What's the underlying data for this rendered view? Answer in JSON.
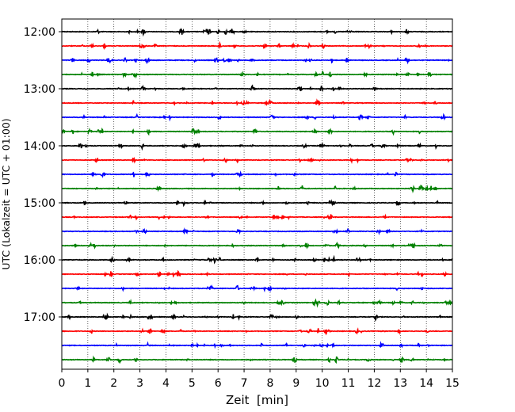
{
  "chart_data": {
    "type": "line",
    "title": "",
    "xlabel": "Zeit  [min]",
    "ylabel": "UTC (Lokalzeit = UTC + 01:00)",
    "xlim": [
      0,
      15
    ],
    "x_ticks": [
      "0",
      "1",
      "2",
      "3",
      "4",
      "5",
      "6",
      "7",
      "8",
      "9",
      "10",
      "11",
      "12",
      "13",
      "14",
      "15"
    ],
    "y_ticks": [
      "12:00",
      "13:00",
      "14:00",
      "15:00",
      "16:00",
      "17:00"
    ],
    "grid": "vertical dotted lines at each minute",
    "row_interval_minutes": 15,
    "row_colors": [
      "#000000",
      "#ff0000",
      "#0000ff",
      "#008000"
    ],
    "traces": [
      {
        "start": "12:00",
        "color": "black"
      },
      {
        "start": "12:15",
        "color": "red"
      },
      {
        "start": "12:30",
        "color": "blue"
      },
      {
        "start": "12:45",
        "color": "green"
      },
      {
        "start": "13:00",
        "color": "black"
      },
      {
        "start": "13:15",
        "color": "red"
      },
      {
        "start": "13:30",
        "color": "blue"
      },
      {
        "start": "13:45",
        "color": "green"
      },
      {
        "start": "14:00",
        "color": "black"
      },
      {
        "start": "14:15",
        "color": "red"
      },
      {
        "start": "14:30",
        "color": "blue"
      },
      {
        "start": "14:45",
        "color": "green"
      },
      {
        "start": "15:00",
        "color": "black"
      },
      {
        "start": "15:15",
        "color": "red"
      },
      {
        "start": "15:30",
        "color": "blue"
      },
      {
        "start": "15:45",
        "color": "green"
      },
      {
        "start": "16:00",
        "color": "black"
      },
      {
        "start": "16:15",
        "color": "red"
      },
      {
        "start": "16:30",
        "color": "blue"
      },
      {
        "start": "16:45",
        "color": "green"
      },
      {
        "start": "17:00",
        "color": "black"
      },
      {
        "start": "17:15",
        "color": "red"
      },
      {
        "start": "17:30",
        "color": "blue"
      },
      {
        "start": "17:45",
        "color": "green"
      }
    ]
  }
}
